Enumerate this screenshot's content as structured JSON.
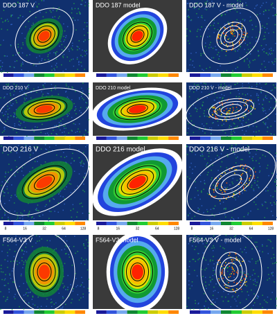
{
  "rows": [
    {
      "panels": [
        {
          "label": "DDO 187 V"
        },
        {
          "label": "DDO 187 model"
        },
        {
          "label": "DDO 187 V - model"
        }
      ]
    },
    {
      "panels": [
        {
          "label": "DDO 210 V"
        },
        {
          "label": "DDO 210 model"
        },
        {
          "label": "DDO 210 V - model"
        }
      ]
    },
    {
      "panels": [
        {
          "label": "DDO 216 V"
        },
        {
          "label": "DDO 216 model"
        },
        {
          "label": "DDO 216 V - model"
        }
      ],
      "colorbar_ticks": [
        "8",
        "16",
        "32",
        "64",
        "128"
      ]
    },
    {
      "panels": [
        {
          "label": "F564-V3 V"
        },
        {
          "label": "F564-V3 model"
        },
        {
          "label": "F564-V3 V - model"
        }
      ]
    }
  ]
}
